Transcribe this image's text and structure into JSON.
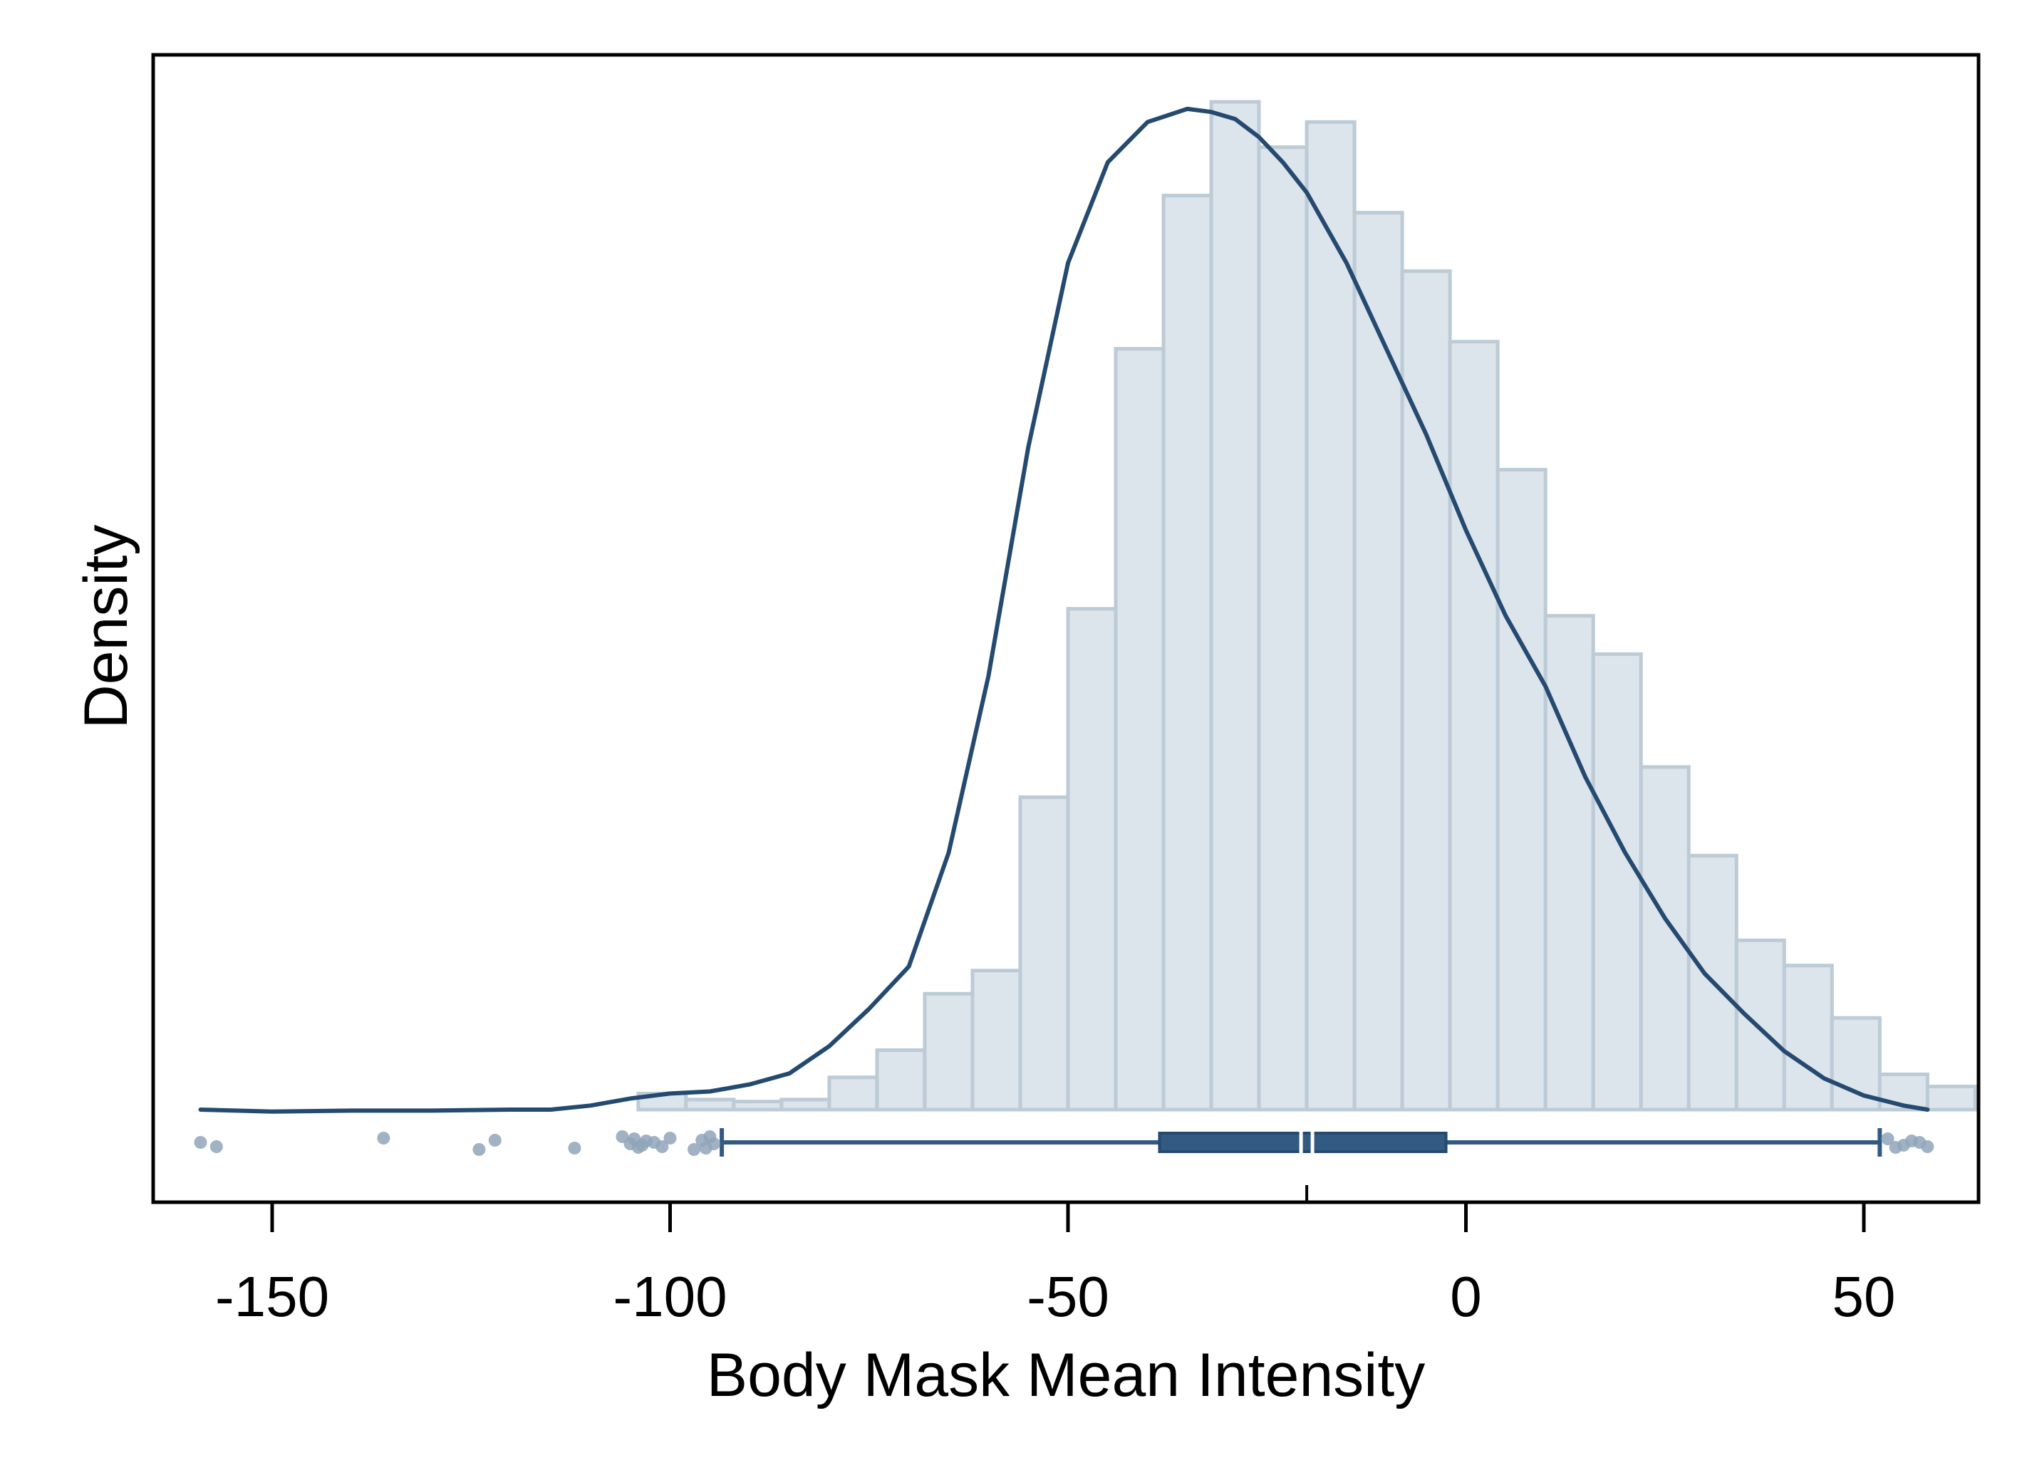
{
  "chart_data": {
    "type": "histogram",
    "xlabel": "Body Mask Mean Intensity",
    "ylabel": "Density",
    "xlim": [
      -165,
      65
    ],
    "x_ticks": [
      -150,
      -100,
      -50,
      0,
      50
    ],
    "x_tick_labels": [
      "-150",
      "-100",
      "-50",
      "0",
      "50"
    ],
    "y_ticks_shown": false,
    "grid": false,
    "legend": "none",
    "histogram": {
      "bin_width": 6,
      "bin_start": -104,
      "relative_heights": [
        0.016,
        0.01,
        0.008,
        0.01,
        0.032,
        0.059,
        0.115,
        0.138,
        0.31,
        0.497,
        0.755,
        0.907,
        1.0,
        0.955,
        0.98,
        0.89,
        0.832,
        0.762,
        0.635,
        0.49,
        0.452,
        0.34,
        0.252,
        0.168,
        0.143,
        0.091,
        0.035,
        0.023
      ]
    },
    "density_curve": {
      "x": [
        -159,
        -150,
        -140,
        -130,
        -120,
        -115,
        -110,
        -105,
        -100,
        -95,
        -90,
        -85,
        -80,
        -75,
        -70,
        -65,
        -60,
        -55,
        -50,
        -45,
        -40,
        -35,
        -32,
        -29,
        -26,
        -23,
        -20,
        -15,
        -10,
        -5,
        0,
        5,
        10,
        15,
        20,
        25,
        30,
        35,
        40,
        45,
        50,
        55,
        58
      ],
      "relative_density": [
        0.0,
        -0.002,
        -0.001,
        -0.001,
        0.0,
        0.0,
        0.004,
        0.011,
        0.016,
        0.018,
        0.025,
        0.036,
        0.063,
        0.1,
        0.142,
        0.255,
        0.43,
        0.657,
        0.84,
        0.94,
        0.98,
        0.993,
        0.99,
        0.983,
        0.965,
        0.94,
        0.91,
        0.84,
        0.755,
        0.67,
        0.575,
        0.49,
        0.42,
        0.33,
        0.255,
        0.19,
        0.135,
        0.095,
        0.058,
        0.031,
        0.014,
        0.004,
        0.0
      ]
    },
    "boxplot": {
      "whisker_low": -93.5,
      "q1": -38.5,
      "median": -20,
      "q3": -2.5,
      "whisker_high": 52,
      "outliers": [
        -159,
        -157,
        -136,
        -124,
        -122,
        -112,
        -106,
        -105,
        -104.5,
        -104,
        -103.5,
        -103,
        -102,
        -101,
        -100,
        -97,
        -96,
        -95.5,
        -95,
        -94.5,
        53,
        54,
        55,
        56,
        57,
        58
      ]
    },
    "colors": {
      "bar_fill": "#dce4ec",
      "bar_edge": "#bccbd6",
      "curve": "#254a70",
      "box": "#335a82",
      "outlier": "#8fa4b8"
    }
  }
}
